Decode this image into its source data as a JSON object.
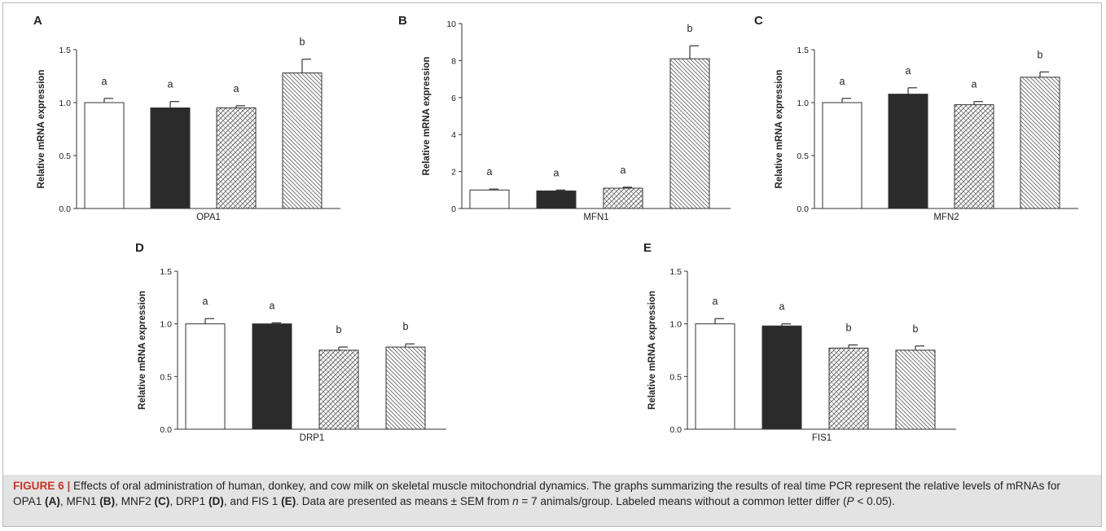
{
  "chart_data": [
    {
      "type": "bar",
      "panel": "A",
      "title": "",
      "xlabel": "OPA1",
      "ylabel": "Relative mRNA expression",
      "ylim": [
        0,
        1.5
      ],
      "yticks": [
        "0.0",
        "0.5",
        "1.0",
        "1.5"
      ],
      "values": [
        1.0,
        0.95,
        0.95,
        1.28
      ],
      "errors": [
        0.04,
        0.06,
        0.02,
        0.13
      ],
      "letters": [
        "a",
        "a",
        "a",
        "b"
      ],
      "fills": [
        "white",
        "black",
        "crosshatch",
        "diagonal"
      ]
    },
    {
      "type": "bar",
      "panel": "B",
      "title": "",
      "xlabel": "MFN1",
      "ylabel": "Relative mRNA expression",
      "ylim": [
        0,
        10
      ],
      "yticks": [
        "0",
        "2",
        "4",
        "6",
        "8",
        "10"
      ],
      "values": [
        1.0,
        0.95,
        1.1,
        8.1
      ],
      "errors": [
        0.05,
        0.05,
        0.05,
        0.7
      ],
      "letters": [
        "a",
        "a",
        "a",
        "b"
      ],
      "fills": [
        "white",
        "black",
        "crosshatch",
        "diagonal"
      ]
    },
    {
      "type": "bar",
      "panel": "C",
      "title": "",
      "xlabel": "MFN2",
      "ylabel": "Relative mRNA expression",
      "ylim": [
        0,
        1.5
      ],
      "yticks": [
        "0.0",
        "0.5",
        "1.0",
        "1.5"
      ],
      "values": [
        1.0,
        1.08,
        0.98,
        1.24
      ],
      "errors": [
        0.04,
        0.06,
        0.03,
        0.05
      ],
      "letters": [
        "a",
        "a",
        "a",
        "b"
      ],
      "fills": [
        "white",
        "black",
        "crosshatch",
        "diagonal"
      ]
    },
    {
      "type": "bar",
      "panel": "D",
      "title": "",
      "xlabel": "DRP1",
      "ylabel": "Relative mRNA expression",
      "ylim": [
        0,
        1.5
      ],
      "yticks": [
        "0.0",
        "0.5",
        "1.0",
        "1.5"
      ],
      "values": [
        1.0,
        1.0,
        0.75,
        0.78
      ],
      "errors": [
        0.05,
        0.01,
        0.03,
        0.03
      ],
      "letters": [
        "a",
        "a",
        "b",
        "b"
      ],
      "fills": [
        "white",
        "black",
        "crosshatch",
        "diagonal"
      ]
    },
    {
      "type": "bar",
      "panel": "E",
      "title": "",
      "xlabel": "FIS1",
      "ylabel": "Relative mRNA expression",
      "ylim": [
        0,
        1.5
      ],
      "yticks": [
        "0.0",
        "0.5",
        "1.0",
        "1.5"
      ],
      "values": [
        1.0,
        0.98,
        0.77,
        0.75
      ],
      "errors": [
        0.05,
        0.02,
        0.03,
        0.04
      ],
      "letters": [
        "a",
        "a",
        "b",
        "b"
      ],
      "fills": [
        "white",
        "black",
        "crosshatch",
        "diagonal"
      ]
    }
  ],
  "caption": {
    "label": "FIGURE 6 |",
    "segments": [
      {
        "t": " Effects of oral administration of human, donkey, and cow milk on skeletal muscle mitochondrial dynamics. The graphs summarizing the results of real time PCR represent the relative levels of mRNAs for OPA1 ",
        "style": "n"
      },
      {
        "t": "(A)",
        "style": "b"
      },
      {
        "t": ", MFN1 ",
        "style": "n"
      },
      {
        "t": "(B)",
        "style": "b"
      },
      {
        "t": ", MNF2 ",
        "style": "n"
      },
      {
        "t": "(C)",
        "style": "b"
      },
      {
        "t": ", DRP1 ",
        "style": "n"
      },
      {
        "t": "(D)",
        "style": "b"
      },
      {
        "t": ", and FIS 1 ",
        "style": "n"
      },
      {
        "t": "(E)",
        "style": "b"
      },
      {
        "t": ". Data are presented as means ± SEM from ",
        "style": "n"
      },
      {
        "t": "n",
        "style": "i"
      },
      {
        "t": " = 7 animals/group. Labeled means without a common letter differ (",
        "style": "n"
      },
      {
        "t": "P",
        "style": "i"
      },
      {
        "t": " < 0.05).",
        "style": "n"
      }
    ]
  },
  "colors": {
    "bar_black": "#2b2b2b",
    "axis": "#333333",
    "caption_bg": "#e3e3e3",
    "caption_label": "#c0392b"
  }
}
